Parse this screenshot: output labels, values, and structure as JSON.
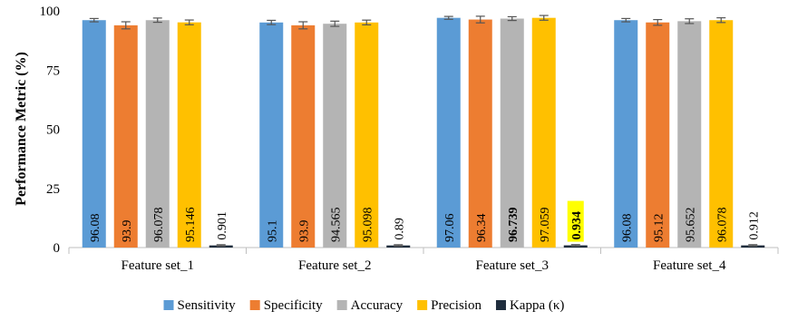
{
  "chart_data": {
    "type": "bar",
    "title": "",
    "xlabel": "",
    "ylabel": "Performance Metric (%)",
    "ylim": [
      0,
      100
    ],
    "yticks": [
      0,
      25,
      50,
      75,
      100
    ],
    "grid": false,
    "legend_position": "bottom",
    "categories": [
      "Feature set_1",
      "Feature set_2",
      "Feature set_3",
      "Feature set_4"
    ],
    "series": [
      {
        "name": "Sensitivity",
        "color": "#5b9bd5",
        "values": [
          96.08,
          95.1,
          97.06,
          96.08
        ],
        "labels": [
          "96.08",
          "95.1",
          "97.06",
          "96.08"
        ],
        "error": [
          0.7,
          0.9,
          0.6,
          0.7
        ]
      },
      {
        "name": "Specificity",
        "color": "#ed7d31",
        "values": [
          93.9,
          93.9,
          96.34,
          95.12
        ],
        "labels": [
          "93.9",
          "93.9",
          "96.34",
          "95.12"
        ],
        "error": [
          1.5,
          1.5,
          1.4,
          1.2
        ]
      },
      {
        "name": "Accuracy",
        "color": "#b4b4b4",
        "values": [
          96.078,
          94.565,
          96.739,
          95.652
        ],
        "labels": [
          "96.078",
          "94.565",
          "96.739",
          "95.652"
        ],
        "error": [
          0.9,
          1.1,
          0.8,
          1.0
        ]
      },
      {
        "name": "Precision",
        "color": "#ffc000",
        "values": [
          95.146,
          95.098,
          97.059,
          96.078
        ],
        "labels": [
          "95.146",
          "95.098",
          "97.059",
          "96.078"
        ],
        "error": [
          1.0,
          1.0,
          1.0,
          1.0
        ]
      },
      {
        "name": "Kappa (κ)",
        "color": "#1f2d3d",
        "values": [
          0.901,
          0.89,
          0.934,
          0.912
        ],
        "labels": [
          "0.901",
          "0.89",
          "0.934",
          "0.912"
        ],
        "error": [
          0.3,
          0.3,
          0.3,
          0.3
        ]
      }
    ],
    "highlight": {
      "category_index": 2,
      "series_bold": [
        2,
        4
      ],
      "label_background": {
        "series_index": 4,
        "color": "#ffff00"
      }
    }
  }
}
